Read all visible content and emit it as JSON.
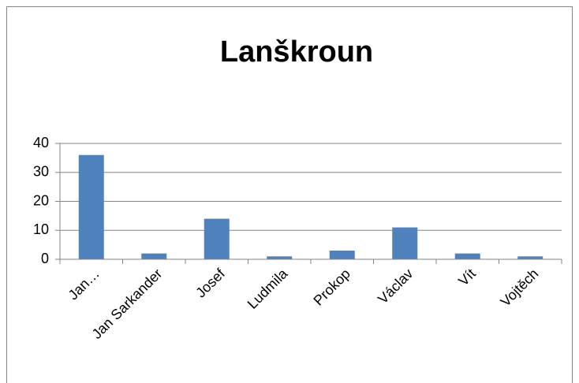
{
  "chart_data": {
    "type": "bar",
    "title": "Lanškroun",
    "categories": [
      "Jan…",
      "Jan Sarkander",
      "Josef",
      "Ludmila",
      "Prokop",
      "Václav",
      "Vít",
      "Vojtěch"
    ],
    "values": [
      36,
      2,
      14,
      1,
      3,
      11,
      2,
      1
    ],
    "color": "#4f81bd",
    "ylim": [
      0,
      40
    ],
    "yticks": [
      0,
      10,
      20,
      30,
      40
    ],
    "grid": true
  }
}
